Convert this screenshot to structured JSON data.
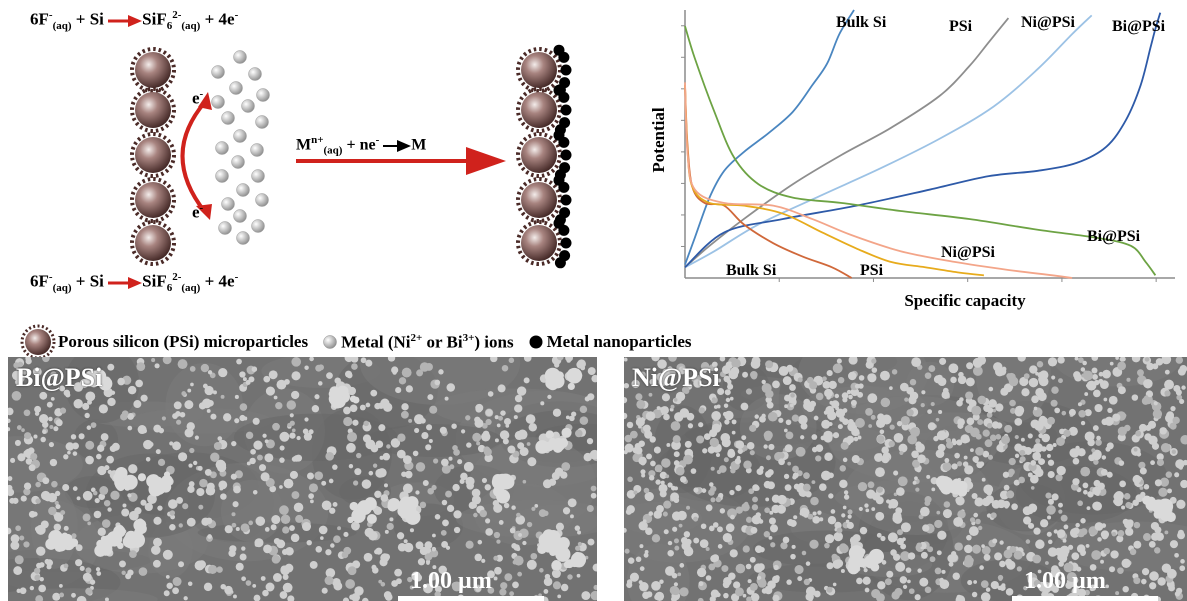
{
  "top_equation": {
    "lhs": "6F",
    "lhs_sup": "-",
    "lhs_sub": "(aq)",
    "plus_si": " + Si",
    "product": "SiF",
    "product_sub1": "6",
    "product_sup": "2-",
    "product_sub2": "(aq)",
    "tail": " + 4e",
    "tail_sup": "-"
  },
  "bottom_equation": {
    "lhs": "6F",
    "lhs_sup": "-",
    "lhs_sub": "(aq)",
    "plus_si": " + Si",
    "product": "SiF",
    "product_sub1": "6",
    "product_sup": "2-",
    "product_sub2": "(aq)",
    "tail": " + 4e",
    "tail_sup": "-"
  },
  "electron_top": "e",
  "electron_bottom": "e",
  "electron_sup": "-",
  "reduction": {
    "m": "M",
    "m_sup": "n+",
    "m_sub": "(aq)",
    "ne": " + ne",
    "ne_sup": "-",
    "product": "M"
  },
  "legend": {
    "psi": "Porous silicon (PSi) microparticles",
    "ions_prefix": "Metal (Ni",
    "ions_sup1": "2+",
    "ions_mid": " or Bi",
    "ions_sup2": "3+",
    "ions_suffix": ") ions",
    "nanoparticles": "Metal nanoparticles"
  },
  "sem_left": {
    "label": "Bi@PSi",
    "scale": "1.00 µm"
  },
  "sem_right": {
    "label": "Ni@PSi",
    "scale": "1.00 µm"
  },
  "chart_data": {
    "type": "line",
    "xlabel": "Specific capacity",
    "ylabel": "Potential",
    "x_range": [
      0,
      1
    ],
    "y_range": [
      0,
      1
    ],
    "ticks_numeric": false,
    "series": [
      {
        "name": "Bulk Si",
        "role": "charge",
        "color": "#4a86c0",
        "x": [
          0.0,
          0.02,
          0.05,
          0.08,
          0.12,
          0.17,
          0.22,
          0.26,
          0.29,
          0.315,
          0.345
        ],
        "y": [
          0.05,
          0.15,
          0.3,
          0.4,
          0.47,
          0.54,
          0.62,
          0.72,
          0.8,
          0.91,
          1.0
        ]
      },
      {
        "name": "PSi",
        "role": "charge",
        "color": "#8e8e8e",
        "x": [
          0.0,
          0.05,
          0.12,
          0.22,
          0.32,
          0.42,
          0.52,
          0.58,
          0.62,
          0.66
        ],
        "y": [
          0.04,
          0.12,
          0.22,
          0.35,
          0.46,
          0.56,
          0.68,
          0.79,
          0.88,
          0.97
        ]
      },
      {
        "name": "Ni@PSi",
        "role": "charge",
        "color": "#9cc2e5",
        "x": [
          0.0,
          0.06,
          0.15,
          0.28,
          0.4,
          0.52,
          0.63,
          0.72,
          0.79,
          0.83
        ],
        "y": [
          0.04,
          0.1,
          0.2,
          0.31,
          0.41,
          0.52,
          0.64,
          0.78,
          0.91,
          0.98
        ]
      },
      {
        "name": "Bi@PSi",
        "role": "charge",
        "color": "#2e5aa8",
        "x": [
          0.0,
          0.08,
          0.2,
          0.35,
          0.5,
          0.62,
          0.72,
          0.8,
          0.86,
          0.9,
          0.93,
          0.95,
          0.96,
          0.97
        ],
        "y": [
          0.04,
          0.17,
          0.22,
          0.27,
          0.33,
          0.38,
          0.4,
          0.43,
          0.49,
          0.59,
          0.72,
          0.86,
          0.93,
          0.99
        ]
      },
      {
        "name": "Bulk Si",
        "role": "discharge",
        "color": "#d0683a",
        "x": [
          0.0,
          0.005,
          0.015,
          0.04,
          0.08,
          0.12,
          0.18,
          0.24,
          0.3,
          0.34
        ],
        "y": [
          0.72,
          0.5,
          0.34,
          0.28,
          0.27,
          0.2,
          0.13,
          0.08,
          0.04,
          0.0
        ]
      },
      {
        "name": "PSi",
        "role": "discharge",
        "color": "#e7ab1c",
        "x": [
          0.0,
          0.005,
          0.015,
          0.05,
          0.12,
          0.2,
          0.28,
          0.35,
          0.42,
          0.49,
          0.56,
          0.61
        ],
        "y": [
          0.72,
          0.48,
          0.34,
          0.28,
          0.27,
          0.24,
          0.17,
          0.11,
          0.06,
          0.04,
          0.02,
          0.01
        ]
      },
      {
        "name": "Ni@PSi",
        "role": "discharge",
        "color": "#f3a589",
        "x": [
          0.0,
          0.005,
          0.02,
          0.08,
          0.18,
          0.26,
          0.34,
          0.44,
          0.55,
          0.66,
          0.75,
          0.79
        ],
        "y": [
          0.73,
          0.47,
          0.33,
          0.28,
          0.27,
          0.22,
          0.16,
          0.1,
          0.06,
          0.03,
          0.01,
          0.0
        ]
      },
      {
        "name": "Bi@PSi",
        "role": "discharge",
        "color": "#6da344",
        "x": [
          0.0,
          0.02,
          0.06,
          0.1,
          0.15,
          0.22,
          0.32,
          0.44,
          0.58,
          0.72,
          0.84,
          0.91,
          0.94,
          0.96
        ],
        "y": [
          0.94,
          0.82,
          0.62,
          0.45,
          0.35,
          0.3,
          0.28,
          0.25,
          0.22,
          0.18,
          0.15,
          0.12,
          0.06,
          0.01
        ]
      }
    ],
    "curve_labels": [
      {
        "text": "Bulk Si",
        "group": "top"
      },
      {
        "text": "PSi",
        "group": "top"
      },
      {
        "text": "Ni@PSi",
        "group": "top"
      },
      {
        "text": "Bi@PSi",
        "group": "top"
      },
      {
        "text": "Bulk Si",
        "group": "bottom"
      },
      {
        "text": "PSi",
        "group": "bottom"
      },
      {
        "text": "Ni@PSi",
        "group": "bottom"
      },
      {
        "text": "Bi@PSi",
        "group": "bottom"
      }
    ],
    "grid": false,
    "legend": "none"
  },
  "colors": {
    "arrow_red": "#d0221c",
    "particle_dark": "#5a3a36",
    "ion_grey": "#bdbdbd",
    "nanoparticle": "#000000"
  }
}
